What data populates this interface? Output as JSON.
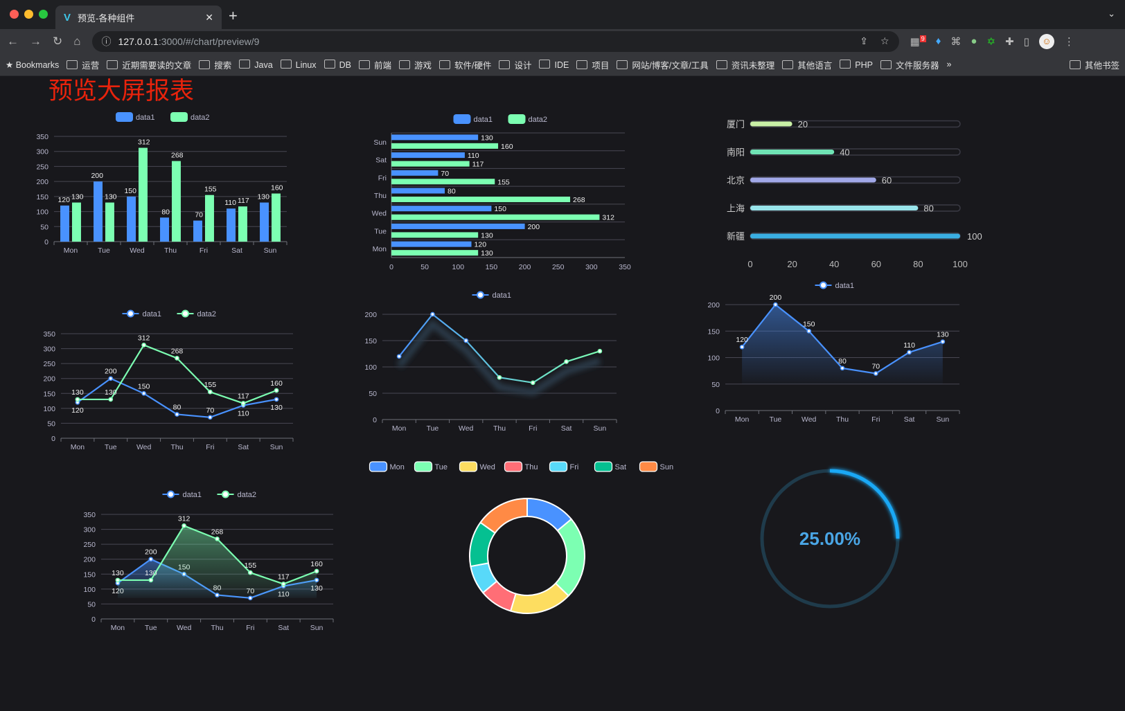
{
  "browser": {
    "tab_title": "预览-各种组件",
    "url_host": "127.0.0.1",
    "url_path": ":3000/#/chart/preview/9",
    "ext_badge": "9",
    "bookmarks": [
      "Bookmarks",
      "运营",
      "近期需要读的文章",
      "搜索",
      "Java",
      "Linux",
      "DB",
      "前端",
      "游戏",
      "软件/硬件",
      "设计",
      "IDE",
      "项目",
      "网站/博客/文章/工具",
      "资讯未整理",
      "其他语言",
      "PHP",
      "文件服务器",
      "»",
      "其他书签"
    ]
  },
  "page": {
    "title": "预览大屏报表"
  },
  "colors": {
    "blue": "#4992ff",
    "green": "#7cffb2",
    "yellow": "#fddd60",
    "red": "#ff6e76",
    "cyan": "#58d9f9",
    "teal": "#05c091",
    "orange": "#ff8a45"
  },
  "chart_data": [
    {
      "type": "bar",
      "categories": [
        "Mon",
        "Tue",
        "Wed",
        "Thu",
        "Fri",
        "Sat",
        "Sun"
      ],
      "ylim": [
        0,
        350
      ],
      "yticks": [
        0,
        50,
        100,
        150,
        200,
        250,
        300,
        350
      ],
      "legend": "top",
      "series": [
        {
          "name": "data1",
          "values": [
            120,
            200,
            150,
            80,
            70,
            110,
            130
          ]
        },
        {
          "name": "data2",
          "values": [
            130,
            130,
            312,
            268,
            155,
            117,
            160
          ]
        }
      ]
    },
    {
      "type": "bar",
      "orientation": "horizontal",
      "categories": [
        "Mon",
        "Tue",
        "Wed",
        "Thu",
        "Fri",
        "Sat",
        "Sun"
      ],
      "xlim": [
        0,
        350
      ],
      "xticks": [
        0,
        50,
        100,
        150,
        200,
        250,
        300,
        350
      ],
      "legend": "top",
      "series": [
        {
          "name": "data1",
          "values": [
            120,
            200,
            150,
            80,
            70,
            110,
            130
          ]
        },
        {
          "name": "data2",
          "values": [
            130,
            130,
            312,
            268,
            155,
            117,
            160
          ]
        }
      ]
    },
    {
      "type": "bar",
      "orientation": "horizontal",
      "style": "progress",
      "categories": [
        "厦门",
        "南阳",
        "北京",
        "上海",
        "新疆"
      ],
      "values": [
        20,
        40,
        60,
        80,
        100
      ],
      "xlim": [
        0,
        100
      ],
      "xticks": [
        0,
        20,
        40,
        60,
        80,
        100
      ],
      "colors": [
        "#c9f0a6",
        "#6fe3b4",
        "#a1a8e8",
        "#98e4ea",
        "#3aaee2"
      ]
    },
    {
      "type": "line",
      "categories": [
        "Mon",
        "Tue",
        "Wed",
        "Thu",
        "Fri",
        "Sat",
        "Sun"
      ],
      "ylim": [
        0,
        350
      ],
      "yticks": [
        0,
        50,
        100,
        150,
        200,
        250,
        300,
        350
      ],
      "legend": "top",
      "series": [
        {
          "name": "data1",
          "values": [
            120,
            200,
            150,
            80,
            70,
            110,
            130
          ]
        },
        {
          "name": "data2",
          "values": [
            130,
            130,
            312,
            268,
            155,
            117,
            160
          ]
        }
      ]
    },
    {
      "type": "line",
      "categories": [
        "Mon",
        "Tue",
        "Wed",
        "Thu",
        "Fri",
        "Sat",
        "Sun"
      ],
      "ylim": [
        0,
        200
      ],
      "yticks": [
        0,
        50,
        100,
        150,
        200
      ],
      "legend": "top",
      "series": [
        {
          "name": "data1",
          "values": [
            120,
            200,
            150,
            80,
            70,
            110,
            130
          ]
        }
      ]
    },
    {
      "type": "area",
      "categories": [
        "Mon",
        "Tue",
        "Wed",
        "Thu",
        "Fri",
        "Sat",
        "Sun"
      ],
      "ylim": [
        0,
        200
      ],
      "yticks": [
        0,
        50,
        100,
        150,
        200
      ],
      "legend": "top",
      "series": [
        {
          "name": "data1",
          "values": [
            120,
            200,
            150,
            80,
            70,
            110,
            130
          ]
        }
      ]
    },
    {
      "type": "area",
      "categories": [
        "Mon",
        "Tue",
        "Wed",
        "Thu",
        "Fri",
        "Sat",
        "Sun"
      ],
      "ylim": [
        0,
        350
      ],
      "yticks": [
        0,
        50,
        100,
        150,
        200,
        250,
        300,
        350
      ],
      "legend": "top",
      "series": [
        {
          "name": "data1",
          "values": [
            120,
            200,
            150,
            80,
            70,
            110,
            130
          ]
        },
        {
          "name": "data2",
          "values": [
            130,
            130,
            312,
            268,
            155,
            117,
            160
          ]
        }
      ]
    },
    {
      "type": "pie",
      "style": "donut",
      "categories": [
        "Mon",
        "Tue",
        "Wed",
        "Thu",
        "Fri",
        "Sat",
        "Sun"
      ],
      "values": [
        120,
        200,
        150,
        80,
        70,
        110,
        130
      ],
      "legend": "top"
    },
    {
      "type": "gauge",
      "value": 25,
      "label": "25.00%"
    }
  ]
}
